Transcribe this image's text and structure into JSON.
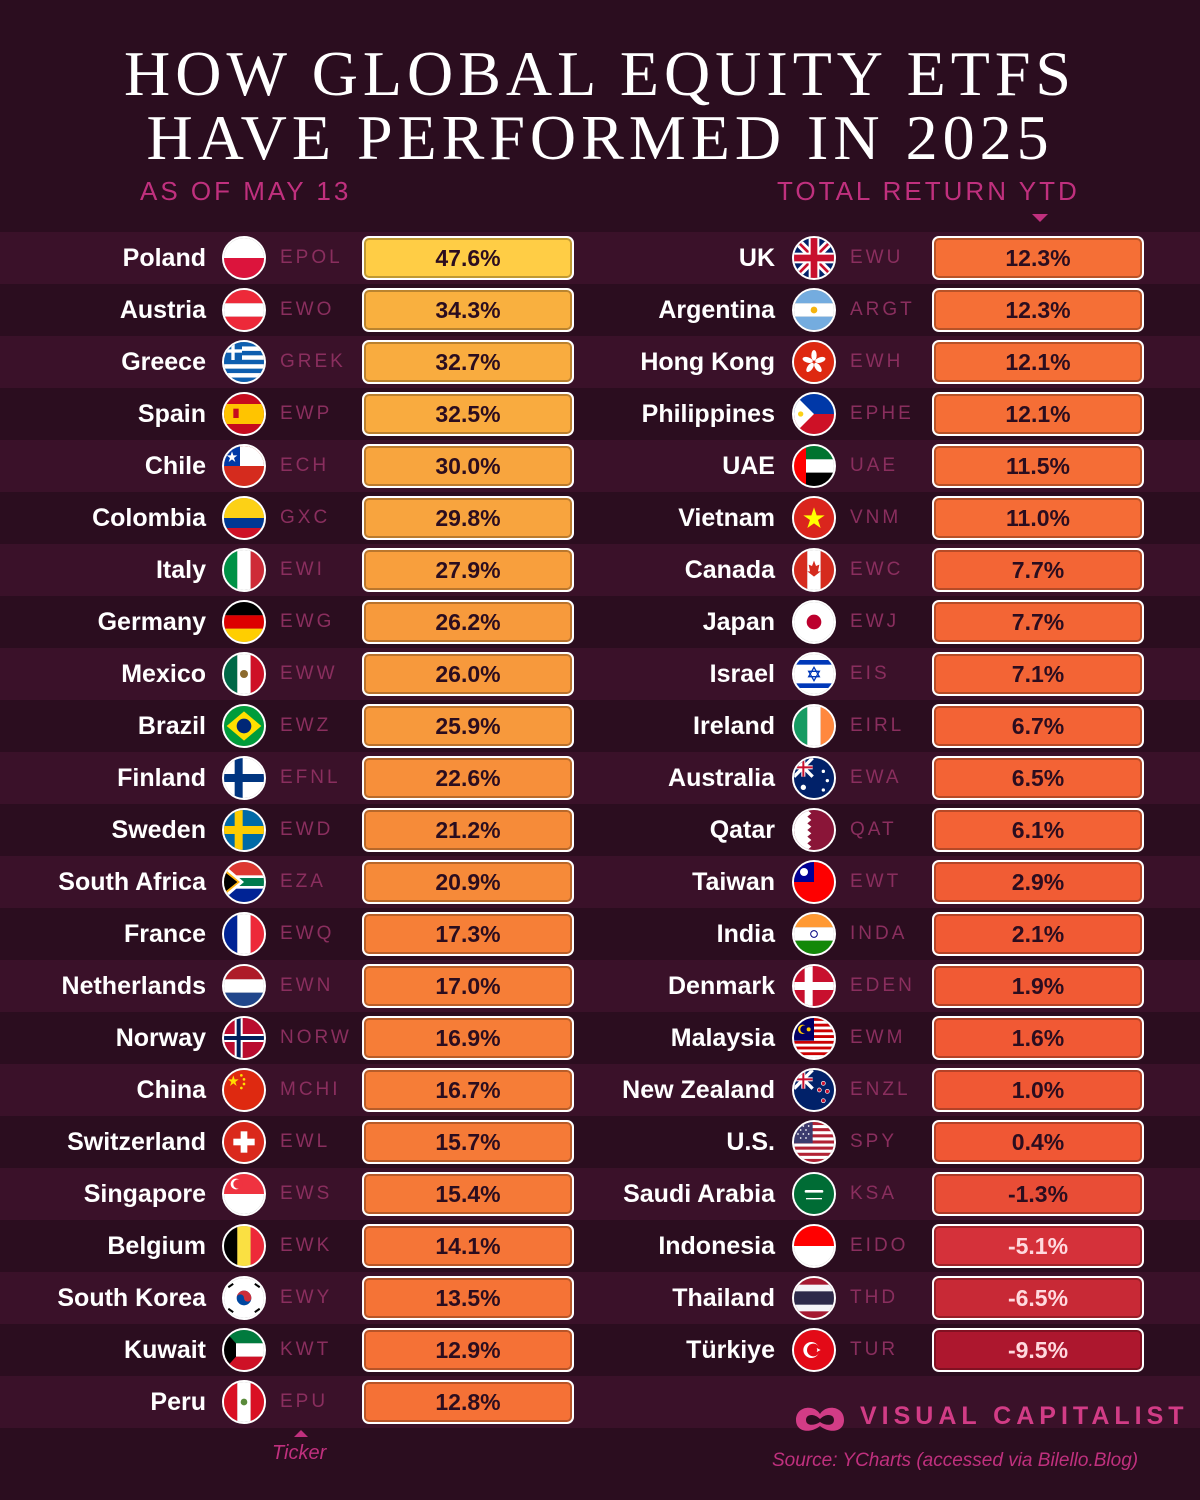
{
  "title": {
    "line1": "HOW GLOBAL EQUITY ETFS",
    "line2": "HAVE PERFORMED IN 2025"
  },
  "subtitle_left": "AS OF MAY 13",
  "subtitle_right": "TOTAL RETURN YTD",
  "ticker_label": "Ticker",
  "brand": "VISUAL CAPITALIST",
  "source": "Source: YCharts (accessed via Bilello.Blog)",
  "colors": {
    "background": "#2b0d1f",
    "stripe": "#3a1129",
    "accent": "#c0307e",
    "bar_high": "#ffce45",
    "bar_mid": "#f5823a",
    "bar_low": "#b51e3c"
  },
  "chart_data": {
    "type": "table",
    "title": "HOW GLOBAL EQUITY ETFS HAVE PERFORMED IN 2025",
    "subtitle": "AS OF MAY 13",
    "metric": "TOTAL RETURN YTD",
    "unit": "%",
    "columns": [
      [
        {
          "country": "Poland",
          "ticker": "EPOL",
          "value": 47.6,
          "label": "47.6%",
          "flag": "poland-flag-icon"
        },
        {
          "country": "Austria",
          "ticker": "EWO",
          "value": 34.3,
          "label": "34.3%",
          "flag": "austria-flag-icon"
        },
        {
          "country": "Greece",
          "ticker": "GREK",
          "value": 32.7,
          "label": "32.7%",
          "flag": "greece-flag-icon"
        },
        {
          "country": "Spain",
          "ticker": "EWP",
          "value": 32.5,
          "label": "32.5%",
          "flag": "spain-flag-icon"
        },
        {
          "country": "Chile",
          "ticker": "ECH",
          "value": 30.0,
          "label": "30.0%",
          "flag": "chile-flag-icon"
        },
        {
          "country": "Colombia",
          "ticker": "GXC",
          "value": 29.8,
          "label": "29.8%",
          "flag": "colombia-flag-icon"
        },
        {
          "country": "Italy",
          "ticker": "EWI",
          "value": 27.9,
          "label": "27.9%",
          "flag": "italy-flag-icon"
        },
        {
          "country": "Germany",
          "ticker": "EWG",
          "value": 26.2,
          "label": "26.2%",
          "flag": "germany-flag-icon"
        },
        {
          "country": "Mexico",
          "ticker": "EWW",
          "value": 26.0,
          "label": "26.0%",
          "flag": "mexico-flag-icon"
        },
        {
          "country": "Brazil",
          "ticker": "EWZ",
          "value": 25.9,
          "label": "25.9%",
          "flag": "brazil-flag-icon"
        },
        {
          "country": "Finland",
          "ticker": "EFNL",
          "value": 22.6,
          "label": "22.6%",
          "flag": "finland-flag-icon"
        },
        {
          "country": "Sweden",
          "ticker": "EWD",
          "value": 21.2,
          "label": "21.2%",
          "flag": "sweden-flag-icon"
        },
        {
          "country": "South Africa",
          "ticker": "EZA",
          "value": 20.9,
          "label": "20.9%",
          "flag": "south-africa-flag-icon"
        },
        {
          "country": "France",
          "ticker": "EWQ",
          "value": 17.3,
          "label": "17.3%",
          "flag": "france-flag-icon"
        },
        {
          "country": "Netherlands",
          "ticker": "EWN",
          "value": 17.0,
          "label": "17.0%",
          "flag": "netherlands-flag-icon"
        },
        {
          "country": "Norway",
          "ticker": "NORW",
          "value": 16.9,
          "label": "16.9%",
          "flag": "norway-flag-icon"
        },
        {
          "country": "China",
          "ticker": "MCHI",
          "value": 16.7,
          "label": "16.7%",
          "flag": "china-flag-icon"
        },
        {
          "country": "Switzerland",
          "ticker": "EWL",
          "value": 15.7,
          "label": "15.7%",
          "flag": "switzerland-flag-icon"
        },
        {
          "country": "Singapore",
          "ticker": "EWS",
          "value": 15.4,
          "label": "15.4%",
          "flag": "singapore-flag-icon"
        },
        {
          "country": "Belgium",
          "ticker": "EWK",
          "value": 14.1,
          "label": "14.1%",
          "flag": "belgium-flag-icon"
        },
        {
          "country": "South Korea",
          "ticker": "EWY",
          "value": 13.5,
          "label": "13.5%",
          "flag": "south-korea-flag-icon"
        },
        {
          "country": "Kuwait",
          "ticker": "KWT",
          "value": 12.9,
          "label": "12.9%",
          "flag": "kuwait-flag-icon"
        },
        {
          "country": "Peru",
          "ticker": "EPU",
          "value": 12.8,
          "label": "12.8%",
          "flag": "peru-flag-icon"
        }
      ],
      [
        {
          "country": "UK",
          "ticker": "EWU",
          "value": 12.3,
          "label": "12.3%",
          "flag": "uk-flag-icon"
        },
        {
          "country": "Argentina",
          "ticker": "ARGT",
          "value": 12.3,
          "label": "12.3%",
          "flag": "argentina-flag-icon"
        },
        {
          "country": "Hong Kong",
          "ticker": "EWH",
          "value": 12.1,
          "label": "12.1%",
          "flag": "hong-kong-flag-icon"
        },
        {
          "country": "Philippines",
          "ticker": "EPHE",
          "value": 12.1,
          "label": "12.1%",
          "flag": "philippines-flag-icon"
        },
        {
          "country": "UAE",
          "ticker": "UAE",
          "value": 11.5,
          "label": "11.5%",
          "flag": "uae-flag-icon"
        },
        {
          "country": "Vietnam",
          "ticker": "VNM",
          "value": 11.0,
          "label": "11.0%",
          "flag": "vietnam-flag-icon"
        },
        {
          "country": "Canada",
          "ticker": "EWC",
          "value": 7.7,
          "label": "7.7%",
          "flag": "canada-flag-icon"
        },
        {
          "country": "Japan",
          "ticker": "EWJ",
          "value": 7.7,
          "label": "7.7%",
          "flag": "japan-flag-icon"
        },
        {
          "country": "Israel",
          "ticker": "EIS",
          "value": 7.1,
          "label": "7.1%",
          "flag": "israel-flag-icon"
        },
        {
          "country": "Ireland",
          "ticker": "EIRL",
          "value": 6.7,
          "label": "6.7%",
          "flag": "ireland-flag-icon"
        },
        {
          "country": "Australia",
          "ticker": "EWA",
          "value": 6.5,
          "label": "6.5%",
          "flag": "australia-flag-icon"
        },
        {
          "country": "Qatar",
          "ticker": "QAT",
          "value": 6.1,
          "label": "6.1%",
          "flag": "qatar-flag-icon"
        },
        {
          "country": "Taiwan",
          "ticker": "EWT",
          "value": 2.9,
          "label": "2.9%",
          "flag": "taiwan-flag-icon"
        },
        {
          "country": "India",
          "ticker": "INDA",
          "value": 2.1,
          "label": "2.1%",
          "flag": "india-flag-icon"
        },
        {
          "country": "Denmark",
          "ticker": "EDEN",
          "value": 1.9,
          "label": "1.9%",
          "flag": "denmark-flag-icon"
        },
        {
          "country": "Malaysia",
          "ticker": "EWM",
          "value": 1.6,
          "label": "1.6%",
          "flag": "malaysia-flag-icon"
        },
        {
          "country": "New Zealand",
          "ticker": "ENZL",
          "value": 1.0,
          "label": "1.0%",
          "flag": "new-zealand-flag-icon"
        },
        {
          "country": "U.S.",
          "ticker": "SPY",
          "value": 0.4,
          "label": "0.4%",
          "flag": "us-flag-icon"
        },
        {
          "country": "Saudi Arabia",
          "ticker": "KSA",
          "value": -1.3,
          "label": "-1.3%",
          "flag": "saudi-arabia-flag-icon"
        },
        {
          "country": "Indonesia",
          "ticker": "EIDO",
          "value": -5.1,
          "label": "-5.1%",
          "flag": "indonesia-flag-icon"
        },
        {
          "country": "Thailand",
          "ticker": "THD",
          "value": -6.5,
          "label": "-6.5%",
          "flag": "thailand-flag-icon"
        },
        {
          "country": "Türkiye",
          "ticker": "TUR",
          "value": -9.5,
          "label": "-9.5%",
          "flag": "turkiye-flag-icon"
        }
      ]
    ]
  }
}
